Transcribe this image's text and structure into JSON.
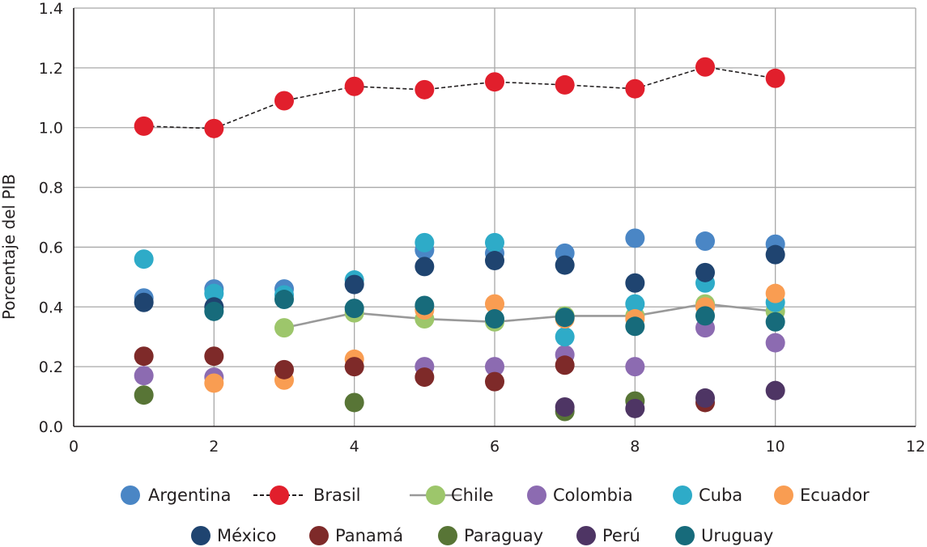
{
  "chart_data": {
    "type": "scatter",
    "title": "",
    "xlabel": "",
    "ylabel": "Porcentaje del PIB",
    "xlim": [
      0,
      12
    ],
    "ylim": [
      0.0,
      1.4
    ],
    "x_ticks": [
      0,
      2,
      4,
      6,
      8,
      10,
      12
    ],
    "y_ticks": [
      0.0,
      0.2,
      0.4,
      0.6,
      0.8,
      1.0,
      1.2,
      1.4
    ],
    "x_tick_labels": [
      "0",
      "2",
      "4",
      "6",
      "8",
      "10",
      "12"
    ],
    "y_tick_labels": [
      "0.0",
      "0.2",
      "0.4",
      "0.6",
      "0.8",
      "1.0",
      "1.2",
      "1.4"
    ],
    "grid": true,
    "legend_position": "bottom",
    "series": [
      {
        "name": "Argentina",
        "color": "#4a86c5",
        "line": "none",
        "x": [
          1,
          2,
          3,
          5,
          6,
          7,
          8,
          9,
          10
        ],
        "y": [
          0.43,
          0.46,
          0.46,
          0.59,
          0.58,
          0.58,
          0.63,
          0.62,
          0.61
        ]
      },
      {
        "name": "Brasil",
        "color": "#e11f2c",
        "line": "dashed",
        "line_color": "#231f20",
        "x": [
          1,
          2,
          3,
          4,
          5,
          6,
          7,
          8,
          9,
          10
        ],
        "y": [
          1.005,
          0.997,
          1.09,
          1.138,
          1.127,
          1.153,
          1.143,
          1.13,
          1.203,
          1.165
        ]
      },
      {
        "name": "Chile",
        "color": "#9dc66b",
        "line": "solid",
        "line_color": "#999999",
        "x": [
          3,
          4,
          5,
          6,
          7,
          8,
          9,
          10
        ],
        "y": [
          0.33,
          0.38,
          0.36,
          0.35,
          0.37,
          0.37,
          0.41,
          0.385
        ]
      },
      {
        "name": "Colombia",
        "color": "#8c6bb1",
        "line": "none",
        "x": [
          1,
          2,
          5,
          6,
          7,
          8,
          9,
          10
        ],
        "y": [
          0.17,
          0.165,
          0.2,
          0.2,
          0.24,
          0.2,
          0.33,
          0.28
        ]
      },
      {
        "name": "Cuba",
        "color": "#2eabc8",
        "line": "none",
        "x": [
          1,
          2,
          3,
          4,
          5,
          6,
          7,
          8,
          9,
          10
        ],
        "y": [
          0.56,
          0.445,
          0.44,
          0.49,
          0.615,
          0.615,
          0.3,
          0.41,
          0.48,
          0.415
        ]
      },
      {
        "name": "Ecuador",
        "color": "#f99d52",
        "line": "none",
        "x": [
          2,
          3,
          4,
          5,
          6,
          7,
          8,
          9,
          10
        ],
        "y": [
          0.145,
          0.155,
          0.225,
          0.39,
          0.41,
          0.36,
          0.36,
          0.4,
          0.445
        ]
      },
      {
        "name": "México",
        "color": "#1f4470",
        "line": "none",
        "x": [
          1,
          2,
          4,
          5,
          6,
          7,
          8,
          9,
          10
        ],
        "y": [
          0.415,
          0.4,
          0.475,
          0.535,
          0.555,
          0.54,
          0.48,
          0.515,
          0.575
        ]
      },
      {
        "name": "Panamá",
        "color": "#7e2a29",
        "line": "none",
        "x": [
          1,
          2,
          3,
          4,
          5,
          6,
          7,
          9
        ],
        "y": [
          0.235,
          0.235,
          0.19,
          0.2,
          0.165,
          0.15,
          0.205,
          0.08
        ]
      },
      {
        "name": "Paraguay",
        "color": "#587536",
        "line": "none",
        "x": [
          1,
          4,
          7,
          8
        ],
        "y": [
          0.105,
          0.08,
          0.05,
          0.085
        ]
      },
      {
        "name": "Perú",
        "color": "#4e3564",
        "line": "none",
        "x": [
          7,
          8,
          9,
          10
        ],
        "y": [
          0.065,
          0.06,
          0.095,
          0.12
        ]
      },
      {
        "name": "Uruguay",
        "color": "#176b7b",
        "line": "none",
        "x": [
          2,
          3,
          4,
          5,
          6,
          7,
          8,
          9,
          10
        ],
        "y": [
          0.385,
          0.425,
          0.395,
          0.405,
          0.36,
          0.365,
          0.335,
          0.37,
          0.35
        ]
      }
    ]
  }
}
